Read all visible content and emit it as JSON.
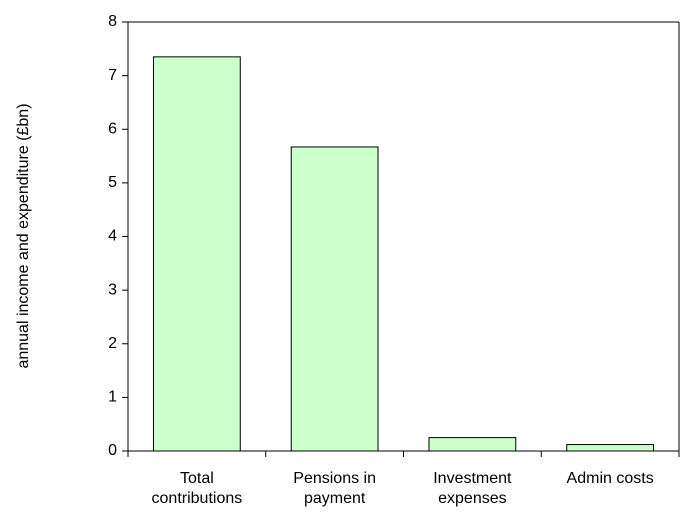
{
  "chart_data": {
    "type": "bar",
    "y_label": "annual income and expenditure (£bn)",
    "categories": [
      "Total contributions",
      "Pensions in payment",
      "Investment expenses",
      "Admin costs"
    ],
    "values": [
      7.35,
      5.67,
      0.25,
      0.12
    ],
    "color": "#ccffcc",
    "ylim": [
      0,
      8
    ],
    "yticks": [
      0,
      1,
      2,
      3,
      4,
      5,
      6,
      7,
      8
    ],
    "grid": false
  }
}
